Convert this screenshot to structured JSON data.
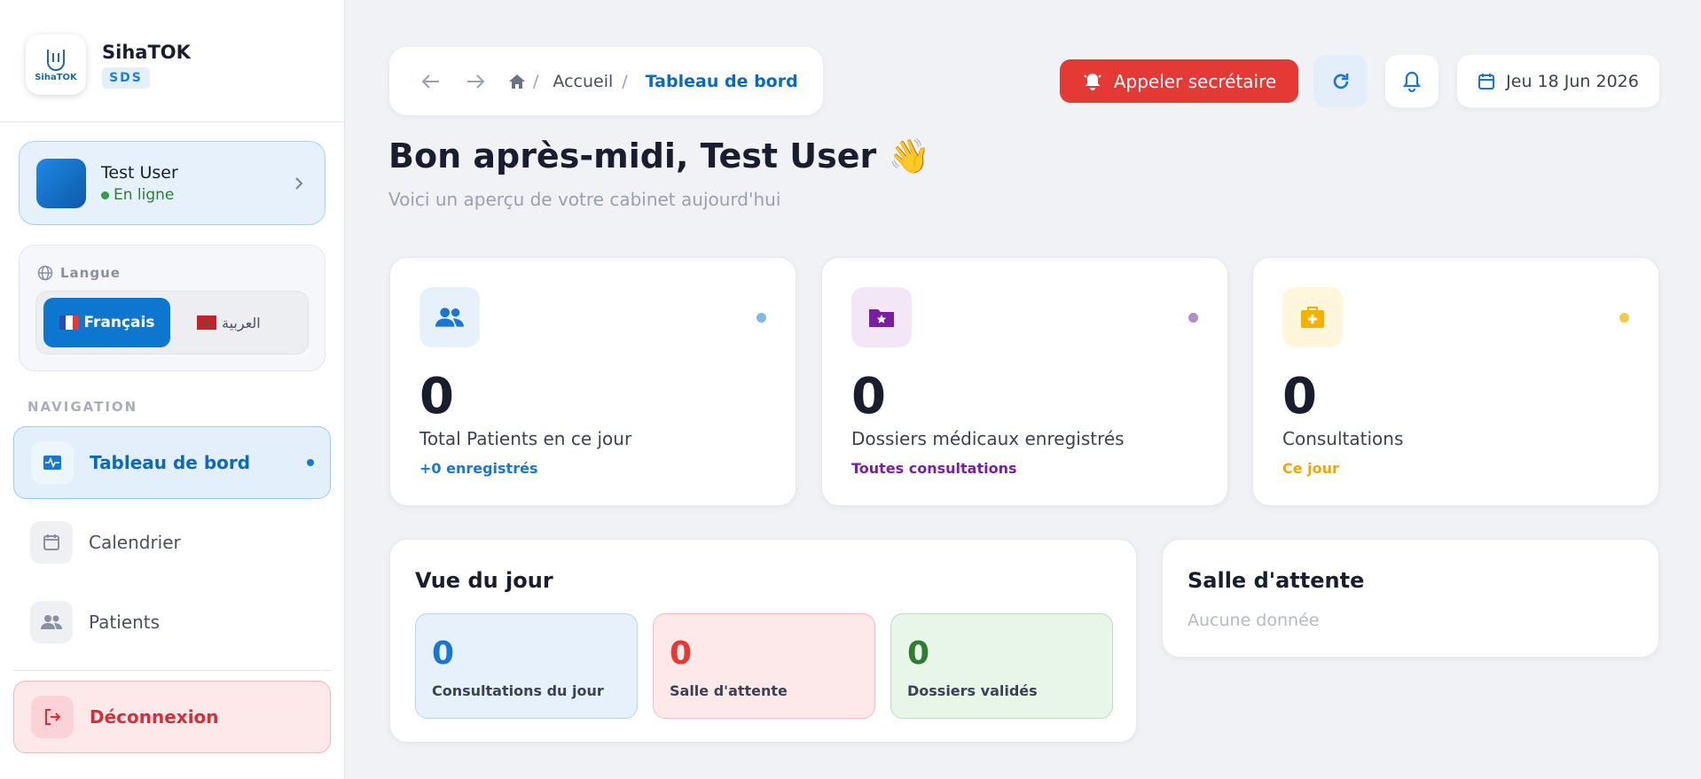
{
  "sidebar": {
    "brand": {
      "name": "SihaTOK",
      "badge": "SDS",
      "logo_text": "SihaTOK"
    },
    "user": {
      "name": "Test User",
      "status": "En ligne"
    },
    "language": {
      "label": "Langue",
      "options": [
        "Français",
        "العربية"
      ]
    },
    "navigation": {
      "label": "NAVIGATION",
      "items": [
        "Tableau de bord",
        "Calendrier",
        "Patients"
      ]
    },
    "logout": "Déconnexion"
  },
  "topbar": {
    "breadcrumb": [
      "Accueil",
      "Tableau de bord"
    ],
    "call_button": "Appeler secrétaire",
    "date": "Jeu 18 Jun 2026"
  },
  "header": {
    "title": "Bon après-midi, Test User 👋",
    "subtitle": "Voici un aperçu de votre cabinet aujourd'hui"
  },
  "stats": [
    {
      "value": 0,
      "label": "Total Patients en ce jour",
      "note": "+0 enregistrés"
    },
    {
      "value": 0,
      "label": "Dossiers médicaux enregistrés",
      "note": "Toutes consultations"
    },
    {
      "value": 0,
      "label": "Consultations",
      "note": "Ce jour"
    }
  ],
  "day_view": {
    "title": "Vue du jour",
    "items": [
      {
        "value": 0,
        "label": "Consultations du jour"
      },
      {
        "value": 0,
        "label": "Salle d'attente"
      },
      {
        "value": 0,
        "label": "Dossiers validés"
      }
    ]
  },
  "waiting_room": {
    "title": "Salle d'attente",
    "empty": "Aucune donnée"
  }
}
